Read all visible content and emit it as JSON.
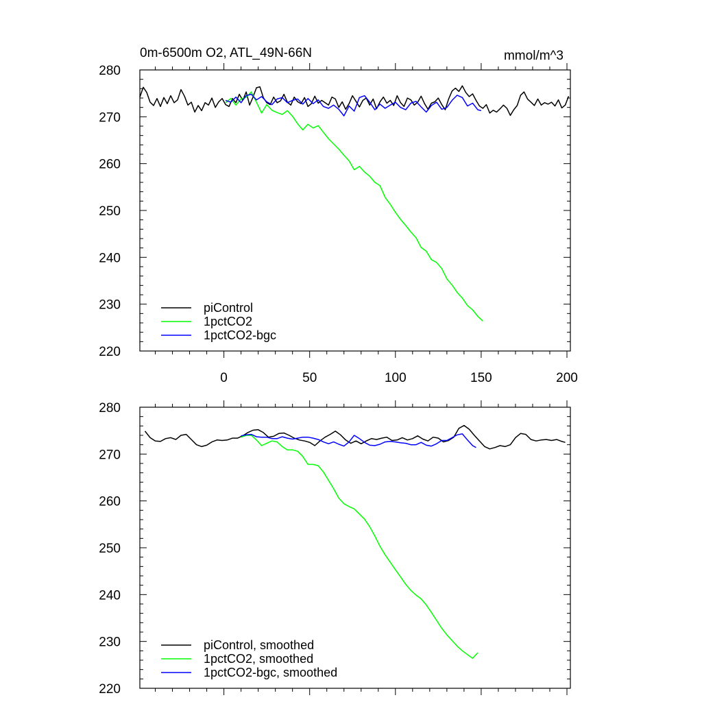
{
  "chart_data": [
    {
      "type": "line",
      "title_left": "0m-6500m O2, ATL_49N-66N",
      "title_right": "mmol/m^3",
      "xlim": [
        -49,
        202
      ],
      "ylim": [
        220,
        280
      ],
      "x_ticks": [
        0,
        50,
        100,
        150,
        200
      ],
      "x_tick_labels": [
        "0",
        "50",
        "100",
        "150",
        "200"
      ],
      "y_ticks": [
        220,
        230,
        240,
        250,
        260,
        270,
        280
      ],
      "y_tick_labels": [
        "220",
        "230",
        "240",
        "250",
        "260",
        "270",
        "280"
      ],
      "legend_position": "bottom-left",
      "series": [
        {
          "name": "piControl",
          "color": "#000000",
          "x": [
            -49,
            -47,
            -45,
            -43,
            -41,
            -39,
            -37,
            -35,
            -33,
            -31,
            -29,
            -27,
            -25,
            -23,
            -21,
            -19,
            -17,
            -15,
            -13,
            -11,
            -9,
            -7,
            -5,
            -3,
            -1,
            1,
            3,
            5,
            7,
            9,
            11,
            13,
            15,
            17,
            19,
            21,
            23,
            25,
            27,
            29,
            31,
            33,
            35,
            37,
            39,
            41,
            43,
            45,
            47,
            49,
            51,
            53,
            55,
            57,
            59,
            61,
            63,
            65,
            67,
            69,
            71,
            73,
            75,
            77,
            79,
            81,
            83,
            85,
            87,
            89,
            91,
            93,
            95,
            97,
            99,
            101,
            103,
            105,
            107,
            109,
            111,
            113,
            115,
            117,
            119,
            121,
            123,
            125,
            127,
            129,
            131,
            133,
            135,
            137,
            139,
            141,
            143,
            145,
            147,
            149,
            151,
            153,
            155,
            157,
            159,
            161,
            163,
            165,
            167,
            169,
            171,
            173,
            175,
            177,
            179,
            181,
            183,
            185,
            187,
            189,
            191,
            193,
            195,
            197,
            199,
            201
          ],
          "y": [
            274.2,
            276.3,
            275.2,
            273.1,
            272.4,
            273.9,
            272.2,
            274.1,
            272.8,
            274.5,
            273.0,
            273.6,
            275.8,
            274.4,
            272.5,
            273.1,
            271.0,
            272.4,
            271.3,
            273.0,
            272.5,
            274.0,
            272.0,
            273.2,
            273.9,
            272.6,
            272.2,
            273.9,
            273.0,
            274.8,
            273.5,
            275.3,
            272.5,
            274.2,
            276.2,
            276.4,
            274.1,
            273.0,
            272.6,
            274.2,
            273.0,
            273.4,
            274.8,
            273.1,
            272.5,
            274.2,
            273.2,
            272.8,
            274.1,
            272.2,
            272.8,
            274.4,
            272.9,
            273.5,
            273.0,
            272.5,
            274.2,
            273.8,
            272.0,
            273.2,
            271.6,
            272.8,
            274.5,
            273.3,
            272.1,
            273.5,
            274.0,
            272.5,
            273.8,
            271.7,
            273.2,
            274.2,
            272.9,
            273.5,
            272.4,
            274.5,
            273.0,
            272.2,
            274.0,
            273.6,
            272.5,
            273.1,
            274.4,
            272.8,
            271.6,
            272.9,
            273.2,
            274.0,
            272.6,
            271.5,
            273.8,
            275.5,
            276.1,
            275.4,
            276.6,
            275.2,
            274.3,
            274.9,
            273.5,
            272.3,
            271.8,
            272.6,
            270.8,
            271.4,
            271.0,
            271.7,
            272.5,
            271.8,
            270.3,
            271.5,
            272.4,
            274.6,
            275.3,
            273.8,
            273.1,
            272.4,
            273.8,
            272.5,
            273.0,
            272.7,
            273.1,
            272.3,
            273.6,
            271.9,
            272.5,
            274.4
          ]
        },
        {
          "name": "1pctCO2",
          "color": "#00ff00",
          "x": [
            1,
            4,
            7,
            10,
            13,
            16,
            19,
            22,
            25,
            28,
            31,
            34,
            37,
            40,
            43,
            46,
            49,
            52,
            55,
            58,
            61,
            64,
            67,
            70,
            73,
            76,
            79,
            82,
            85,
            88,
            91,
            94,
            97,
            100,
            103,
            106,
            109,
            112,
            115,
            118,
            121,
            124,
            127,
            130,
            133,
            136,
            139,
            142,
            145,
            148,
            151
          ],
          "y": [
            273.0,
            273.9,
            272.5,
            273.8,
            274.2,
            275.3,
            273.1,
            270.8,
            272.6,
            271.4,
            270.9,
            270.5,
            271.3,
            270.1,
            268.5,
            267.2,
            268.4,
            267.6,
            268.1,
            266.7,
            265.3,
            264.2,
            263.1,
            261.8,
            260.6,
            258.7,
            259.4,
            258.2,
            257.3,
            256.0,
            255.3,
            252.8,
            251.3,
            249.6,
            248.1,
            246.8,
            245.4,
            244.2,
            242.1,
            241.3,
            239.5,
            238.9,
            237.6,
            235.4,
            234.1,
            232.5,
            231.3,
            229.7,
            228.8,
            227.4,
            226.4
          ]
        },
        {
          "name": "1pctCO2-bgc",
          "color": "#0000ff",
          "x": [
            1,
            4,
            7,
            10,
            13,
            16,
            19,
            22,
            25,
            28,
            31,
            34,
            37,
            40,
            43,
            46,
            49,
            52,
            55,
            58,
            61,
            64,
            67,
            70,
            73,
            76,
            79,
            82,
            85,
            88,
            91,
            94,
            97,
            100,
            103,
            106,
            109,
            112,
            115,
            118,
            121,
            124,
            127,
            130,
            133,
            136,
            139,
            142,
            145,
            148,
            150
          ],
          "y": [
            273.5,
            273.1,
            274.2,
            273.0,
            274.5,
            274.8,
            273.6,
            274.3,
            273.2,
            272.6,
            273.8,
            274.1,
            273.0,
            273.5,
            273.8,
            272.7,
            273.9,
            272.8,
            273.6,
            272.2,
            271.8,
            272.5,
            271.6,
            270.2,
            272.3,
            271.2,
            274.1,
            274.5,
            273.1,
            271.5,
            272.7,
            271.8,
            272.5,
            273.1,
            272.0,
            271.5,
            272.9,
            273.3,
            272.1,
            271.0,
            272.4,
            273.1,
            271.6,
            272.0,
            273.5,
            274.6,
            274.1,
            272.3,
            272.9,
            271.5,
            271.3
          ]
        }
      ]
    },
    {
      "type": "line",
      "xlim": [
        -49,
        202
      ],
      "ylim": [
        220,
        280
      ],
      "x_ticks": [
        0,
        50,
        100,
        150,
        200
      ],
      "y_ticks": [
        220,
        230,
        240,
        250,
        260,
        270,
        280
      ],
      "y_tick_labels": [
        "220",
        "230",
        "240",
        "250",
        "260",
        "270",
        "280"
      ],
      "legend_position": "bottom-left",
      "series": [
        {
          "name": "piControl, smoothed",
          "color": "#000000",
          "x": [
            -46,
            -43,
            -40,
            -37,
            -34,
            -31,
            -28,
            -25,
            -22,
            -19,
            -16,
            -13,
            -10,
            -7,
            -4,
            -1,
            2,
            5,
            8,
            11,
            14,
            17,
            20,
            23,
            26,
            29,
            32,
            35,
            38,
            41,
            44,
            47,
            50,
            53,
            56,
            59,
            62,
            65,
            68,
            71,
            74,
            77,
            80,
            83,
            86,
            89,
            92,
            95,
            98,
            101,
            104,
            107,
            110,
            113,
            116,
            119,
            122,
            125,
            128,
            131,
            134,
            137,
            140,
            143,
            146,
            149,
            152,
            155,
            158,
            161,
            164,
            167,
            170,
            173,
            176,
            179,
            182,
            185,
            188,
            191,
            194,
            197,
            199
          ],
          "y": [
            274.9,
            273.5,
            272.8,
            272.7,
            273.3,
            273.5,
            273.1,
            274.0,
            274.2,
            273.1,
            272.0,
            271.6,
            271.9,
            272.6,
            273.0,
            272.9,
            273.0,
            273.4,
            273.4,
            273.9,
            274.6,
            275.1,
            275.2,
            274.6,
            273.6,
            273.8,
            274.4,
            274.5,
            274.0,
            273.4,
            273.0,
            272.8,
            272.5,
            271.8,
            272.8,
            273.6,
            274.2,
            274.9,
            274.1,
            273.0,
            272.3,
            272.8,
            272.2,
            272.8,
            273.3,
            273.1,
            273.4,
            273.6,
            272.9,
            273.0,
            273.5,
            273.0,
            273.3,
            273.9,
            273.2,
            272.8,
            273.6,
            273.4,
            272.6,
            272.9,
            273.6,
            275.5,
            276.1,
            275.3,
            274.0,
            272.8,
            271.6,
            271.1,
            271.4,
            271.8,
            271.6,
            272.0,
            273.5,
            274.4,
            274.2,
            273.1,
            272.8,
            273.0,
            273.1,
            272.9,
            273.1,
            272.7,
            272.5
          ]
        },
        {
          "name": "1pctCO2, smoothed",
          "color": "#00ff00",
          "x": [
            10,
            13,
            16,
            19,
            22,
            25,
            28,
            31,
            34,
            37,
            40,
            43,
            46,
            49,
            52,
            55,
            58,
            61,
            64,
            67,
            70,
            73,
            76,
            79,
            82,
            85,
            88,
            91,
            94,
            97,
            100,
            103,
            106,
            109,
            112,
            115,
            118,
            121,
            124,
            127,
            130,
            133,
            136,
            139,
            142,
            145,
            148
          ],
          "y": [
            273.6,
            274.0,
            274.0,
            273.0,
            271.8,
            272.3,
            272.8,
            272.6,
            271.6,
            270.9,
            270.9,
            270.6,
            269.5,
            267.8,
            267.8,
            267.5,
            266.2,
            264.4,
            262.6,
            260.6,
            259.4,
            258.8,
            258.3,
            257.2,
            256.1,
            254.5,
            252.5,
            250.3,
            248.5,
            246.9,
            245.3,
            243.8,
            242.2,
            240.9,
            239.9,
            239.1,
            237.8,
            236.2,
            234.5,
            232.8,
            231.4,
            230.2,
            229.0,
            228.0,
            227.2,
            226.4,
            227.6
          ]
        },
        {
          "name": "1pctCO2-bgc, smoothed",
          "color": "#0000ff",
          "x": [
            10,
            13,
            16,
            19,
            22,
            25,
            28,
            31,
            34,
            37,
            40,
            43,
            46,
            49,
            52,
            55,
            58,
            61,
            64,
            67,
            70,
            73,
            76,
            79,
            82,
            85,
            88,
            91,
            94,
            97,
            100,
            103,
            106,
            109,
            112,
            115,
            118,
            121,
            124,
            127,
            130,
            133,
            136,
            139,
            142,
            145,
            147
          ],
          "y": [
            273.9,
            274.1,
            274.2,
            273.7,
            273.6,
            273.6,
            273.3,
            273.3,
            273.7,
            273.4,
            273.2,
            273.4,
            273.6,
            273.6,
            273.4,
            273.1,
            272.6,
            272.2,
            272.6,
            272.1,
            271.7,
            272.6,
            274.0,
            273.3,
            272.5,
            271.9,
            271.8,
            272.1,
            272.6,
            272.7,
            272.6,
            272.4,
            272.3,
            272.0,
            272.0,
            272.5,
            271.9,
            271.7,
            272.2,
            272.9,
            272.9,
            273.5,
            274.1,
            274.3,
            273.0,
            271.8,
            271.4
          ]
        }
      ]
    }
  ]
}
